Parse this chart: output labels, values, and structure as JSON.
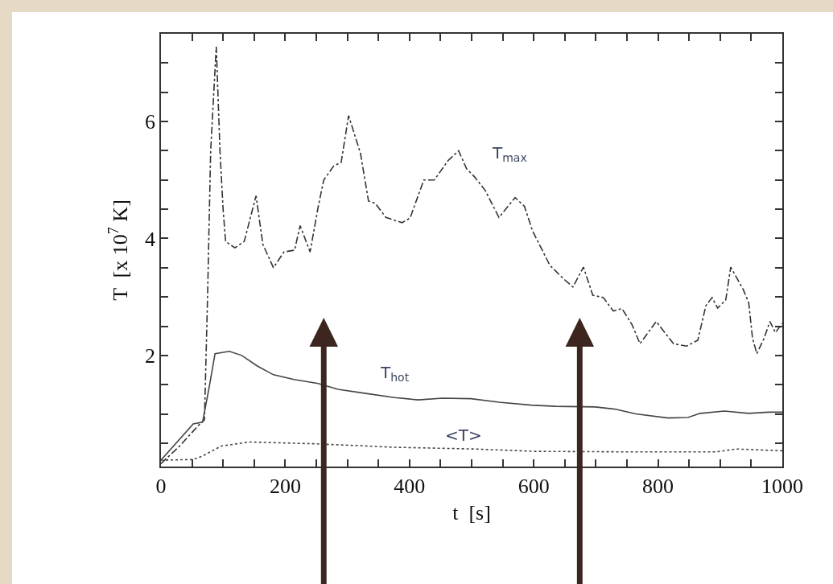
{
  "chart_data": {
    "type": "line",
    "xlabel": "t  [s]",
    "ylabel": "T  [x 10$^{7}$ K]",
    "xlim": [
      0,
      1000
    ],
    "ylim": [
      0.1,
      7.5
    ],
    "xticks": [
      0,
      {
        "value": 50,
        "label": null
      },
      200,
      {
        "value": 100,
        "label": null
      },
      {
        "value": 150,
        "label": null
      },
      {
        "value": 250,
        "label": null
      },
      {
        "value": 300,
        "label": null
      },
      {
        "value": 350,
        "label": null
      },
      400,
      {
        "value": 450,
        "label": null
      },
      {
        "value": 500,
        "label": null
      },
      {
        "value": 550,
        "label": null
      },
      600,
      {
        "value": 650,
        "label": null
      },
      {
        "value": 700,
        "label": null
      },
      {
        "value": 750,
        "label": null
      },
      800,
      {
        "value": 850,
        "label": null
      },
      {
        "value": 900,
        "label": null
      },
      {
        "value": 950,
        "label": null
      },
      1000
    ],
    "yticks": [
      {
        "value": 0.5,
        "label": null
      },
      {
        "value": 1,
        "label": null
      },
      {
        "value": 1.5,
        "label": null
      },
      2,
      {
        "value": 2.5,
        "label": null
      },
      {
        "value": 3,
        "label": null
      },
      {
        "value": 3.5,
        "label": null
      },
      4,
      {
        "value": 4.5,
        "label": null
      },
      {
        "value": 5,
        "label": null
      },
      {
        "value": 5.5,
        "label": null
      },
      6,
      {
        "value": 6.5,
        "label": null
      },
      {
        "value": 7,
        "label": null
      }
    ],
    "series": [
      {
        "name": "T$_{max}$",
        "color": "#333333",
        "line_style": "dashdot",
        "x": [
          0,
          30,
          60,
          70,
          75,
          80,
          89,
          95,
          100,
          104,
          119,
          134,
          153,
          164,
          181,
          198,
          215,
          224,
          240,
          253,
          262,
          278,
          290,
          302,
          321,
          334,
          345,
          362,
          388,
          401,
          423,
          440,
          462,
          479,
          492,
          505,
          522,
          544,
          570,
          585,
          598,
          615,
          626,
          648,
          663,
          680,
          695,
          712,
          728,
          742,
          758,
          771,
          797,
          825,
          846,
          864,
          877,
          887,
          896,
          909,
          917,
          937,
          946,
          952,
          959,
          971,
          980,
          989,
          1000
        ],
        "values": [
          0.15,
          0.45,
          0.8,
          0.9,
          3.0,
          5.5,
          7.28,
          5.5,
          4.5,
          3.95,
          3.84,
          3.95,
          4.73,
          3.9,
          3.5,
          3.77,
          3.8,
          4.22,
          3.77,
          4.54,
          5.0,
          5.24,
          5.3,
          6.1,
          5.46,
          4.64,
          4.6,
          4.36,
          4.27,
          4.35,
          5.0,
          5.0,
          5.33,
          5.5,
          5.19,
          5.05,
          4.82,
          4.36,
          4.7,
          4.55,
          4.13,
          3.77,
          3.54,
          3.31,
          3.17,
          3.51,
          3.03,
          2.99,
          2.76,
          2.8,
          2.53,
          2.2,
          2.58,
          2.2,
          2.16,
          2.26,
          2.85,
          2.99,
          2.81,
          2.95,
          3.51,
          3.13,
          2.9,
          2.3,
          2.03,
          2.3,
          2.58,
          2.39,
          2.55
        ]
      },
      {
        "name": "T$_{hot}$",
        "color": "#444444",
        "line_style": "solid",
        "x": [
          0,
          52,
          67,
          78,
          87,
          110,
          130,
          155,
          181,
          214,
          253,
          285,
          330,
          376,
          414,
          453,
          499,
          544,
          596,
          635,
          699,
          732,
          764,
          816,
          848,
          868,
          907,
          946,
          978,
          1000
        ],
        "values": [
          0.21,
          0.83,
          0.86,
          1.48,
          2.03,
          2.07,
          2.0,
          1.82,
          1.67,
          1.59,
          1.52,
          1.42,
          1.35,
          1.28,
          1.24,
          1.27,
          1.26,
          1.2,
          1.15,
          1.13,
          1.12,
          1.08,
          1.0,
          0.93,
          0.94,
          1.01,
          1.05,
          1.01,
          1.03,
          1.03
        ]
      },
      {
        "name": "<T>",
        "color": "#444444",
        "line_style": "dotted",
        "x": [
          0,
          52,
          67,
          97,
          142,
          246,
          376,
          505,
          602,
          764,
          893,
          926,
          1000
        ],
        "values": [
          0.21,
          0.22,
          0.28,
          0.45,
          0.52,
          0.49,
          0.43,
          0.4,
          0.36,
          0.35,
          0.35,
          0.4,
          0.37
        ]
      }
    ]
  }
}
